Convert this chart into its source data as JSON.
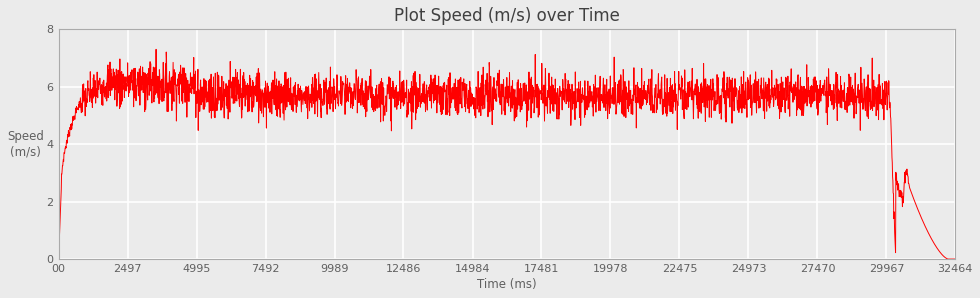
{
  "title": "Plot Speed (m/s) over Time",
  "xlabel": "Time (ms)",
  "ylabel": "Speed\n(m/s)",
  "xlim": [
    0,
    32464
  ],
  "ylim": [
    0,
    8
  ],
  "yticks": [
    0,
    2,
    4,
    6,
    8
  ],
  "xticks": [
    0,
    2497,
    4995,
    7492,
    9989,
    12486,
    14984,
    17481,
    19978,
    22475,
    24973,
    27470,
    29967,
    32464
  ],
  "xticklabels": [
    "00",
    "2497",
    "4995",
    "7492",
    "9989",
    "12486",
    "14984",
    "17481",
    "19978",
    "22475",
    "24973",
    "27470",
    "29967",
    "32464"
  ],
  "line_color": "#ff0000",
  "line_width": 0.7,
  "background_color": "#ebebeb",
  "plot_bg_color": "#ebebeb",
  "grid_color": "#ffffff",
  "title_fontsize": 12,
  "label_fontsize": 8.5,
  "tick_fontsize": 8,
  "total_time_ms": 32464,
  "drop_start_ms": 30100,
  "drop_end_ms": 32200,
  "bump_ms": 30600,
  "seed": 7
}
